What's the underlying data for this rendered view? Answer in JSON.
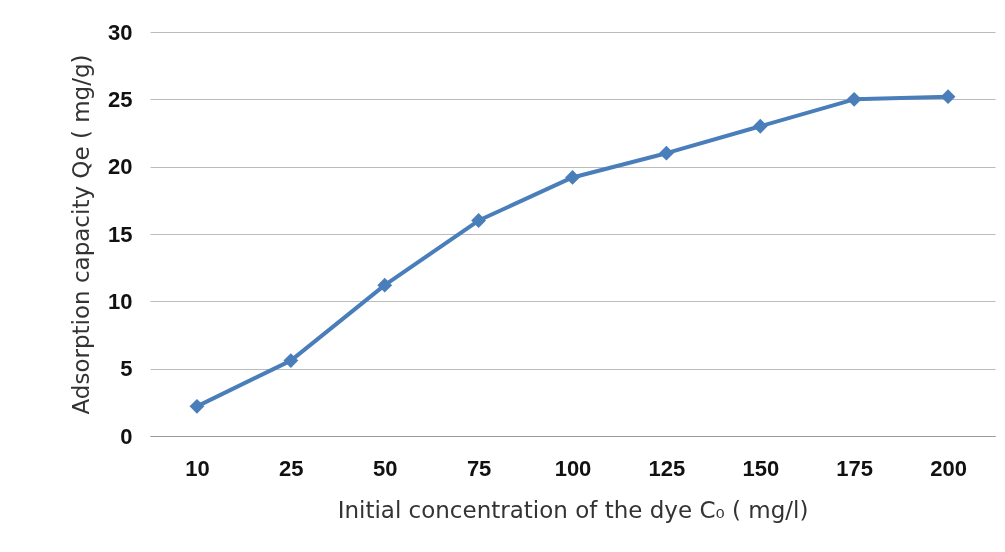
{
  "chart_data": {
    "type": "line",
    "xlabel": "Initial concentration of the dye C₀ ( mg/l)",
    "ylabel": "Adsorption capacity Qe ( mg/g)",
    "categories": [
      "10",
      "25",
      "50",
      "75",
      "100",
      "125",
      "150",
      "175",
      "200"
    ],
    "series": [
      {
        "color": "#4a7ebb",
        "values": [
          2.2,
          5.6,
          11.2,
          16.0,
          19.2,
          21.0,
          23.0,
          25.0,
          25.2
        ]
      }
    ],
    "ylim": [
      0,
      30
    ],
    "yticks": [
      0,
      5,
      10,
      15,
      20,
      25,
      30
    ],
    "grid": "y",
    "marker": "diamond",
    "line_style": "solid",
    "legend": false
  }
}
